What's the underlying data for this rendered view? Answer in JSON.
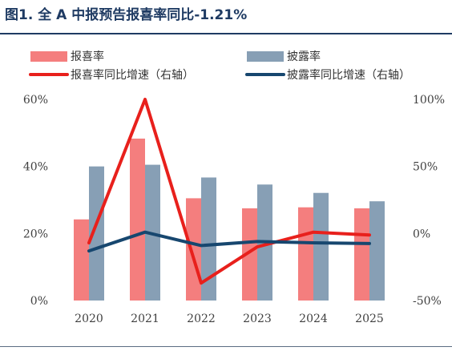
{
  "title": "图1. 全 A 中报预告报喜率同比-1.21%",
  "chart_data": {
    "type": "bar",
    "categories": [
      "2020",
      "2021",
      "2022",
      "2023",
      "2024",
      "2025"
    ],
    "series": [
      {
        "name": "报喜率",
        "kind": "bar",
        "axis": "left",
        "color": "#f47e7e",
        "values": [
          24.2,
          48.3,
          30.5,
          27.5,
          27.8,
          27.5
        ]
      },
      {
        "name": "披露率",
        "kind": "bar",
        "axis": "left",
        "color": "#879fb5",
        "values": [
          40.0,
          40.5,
          36.7,
          34.6,
          32.1,
          29.6
        ]
      },
      {
        "name": "报喜率同比增速（右轴）",
        "kind": "line",
        "axis": "right",
        "color": "#e8201c",
        "values": [
          -7,
          100,
          -37,
          -10,
          1,
          -1.2
        ]
      },
      {
        "name": "披露率同比增速（右轴）",
        "kind": "line",
        "axis": "right",
        "color": "#17476f",
        "values": [
          -13,
          1,
          -9,
          -6,
          -7,
          -7.5
        ]
      }
    ],
    "y_left": {
      "lim": [
        0,
        60
      ],
      "ticks": [
        0,
        20,
        40,
        60
      ],
      "tick_labels": [
        "0%",
        "20%",
        "40%",
        "60%"
      ]
    },
    "y_right": {
      "lim": [
        -50,
        100
      ],
      "ticks": [
        -50,
        0,
        50,
        100
      ],
      "tick_labels": [
        "-50%",
        "0%",
        "50%",
        "100%"
      ]
    },
    "grid": false,
    "legend_position": "top"
  }
}
